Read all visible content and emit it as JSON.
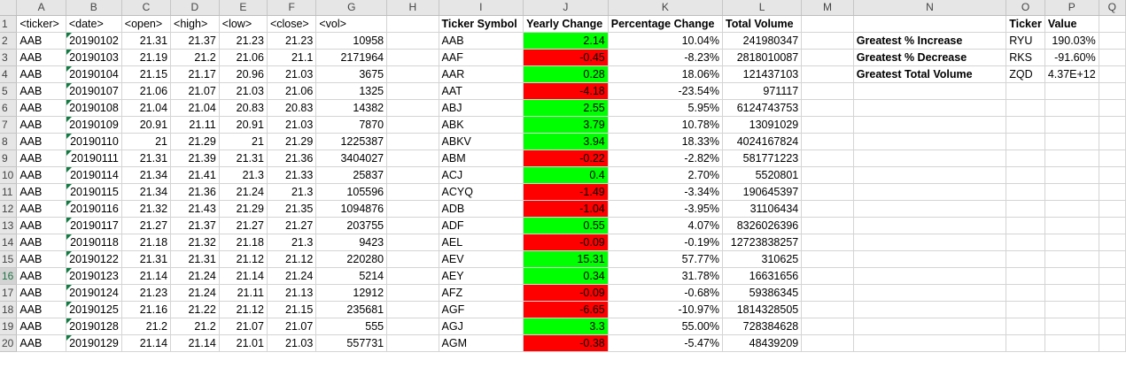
{
  "columns": [
    "A",
    "B",
    "C",
    "D",
    "E",
    "F",
    "G",
    "H",
    "I",
    "J",
    "K",
    "L",
    "M",
    "N",
    "O",
    "P",
    "Q"
  ],
  "headers": {
    "ticker": "<ticker>",
    "date": "<date>",
    "open": "<open>",
    "high": "<high>",
    "low": "<low>",
    "close": "<close>",
    "vol": "<vol>",
    "ticker_symbol": "Ticker Symbol",
    "yearly_change": "Yearly Change",
    "percentage_change": "Percentage Change",
    "total_volume": "Total Volume",
    "summary_ticker": "Ticker",
    "summary_value": "Value"
  },
  "rows": [
    {
      "ticker": "AAB",
      "date": "20190102",
      "open": "21.31",
      "high": "21.37",
      "low": "21.23",
      "close": "21.23",
      "vol": "10958"
    },
    {
      "ticker": "AAB",
      "date": "20190103",
      "open": "21.19",
      "high": "21.2",
      "low": "21.06",
      "close": "21.1",
      "vol": "2171964"
    },
    {
      "ticker": "AAB",
      "date": "20190104",
      "open": "21.15",
      "high": "21.17",
      "low": "20.96",
      "close": "21.03",
      "vol": "3675"
    },
    {
      "ticker": "AAB",
      "date": "20190107",
      "open": "21.06",
      "high": "21.07",
      "low": "21.03",
      "close": "21.06",
      "vol": "1325"
    },
    {
      "ticker": "AAB",
      "date": "20190108",
      "open": "21.04",
      "high": "21.04",
      "low": "20.83",
      "close": "20.83",
      "vol": "14382"
    },
    {
      "ticker": "AAB",
      "date": "20190109",
      "open": "20.91",
      "high": "21.11",
      "low": "20.91",
      "close": "21.03",
      "vol": "7870"
    },
    {
      "ticker": "AAB",
      "date": "20190110",
      "open": "21",
      "high": "21.29",
      "low": "21",
      "close": "21.29",
      "vol": "1225387"
    },
    {
      "ticker": "AAB",
      "date": "20190111",
      "open": "21.31",
      "high": "21.39",
      "low": "21.31",
      "close": "21.36",
      "vol": "3404027"
    },
    {
      "ticker": "AAB",
      "date": "20190114",
      "open": "21.34",
      "high": "21.41",
      "low": "21.3",
      "close": "21.33",
      "vol": "25837"
    },
    {
      "ticker": "AAB",
      "date": "20190115",
      "open": "21.34",
      "high": "21.36",
      "low": "21.24",
      "close": "21.3",
      "vol": "105596"
    },
    {
      "ticker": "AAB",
      "date": "20190116",
      "open": "21.32",
      "high": "21.43",
      "low": "21.29",
      "close": "21.35",
      "vol": "1094876"
    },
    {
      "ticker": "AAB",
      "date": "20190117",
      "open": "21.27",
      "high": "21.37",
      "low": "21.27",
      "close": "21.27",
      "vol": "203755"
    },
    {
      "ticker": "AAB",
      "date": "20190118",
      "open": "21.18",
      "high": "21.32",
      "low": "21.18",
      "close": "21.3",
      "vol": "9423"
    },
    {
      "ticker": "AAB",
      "date": "20190122",
      "open": "21.31",
      "high": "21.31",
      "low": "21.12",
      "close": "21.12",
      "vol": "220280"
    },
    {
      "ticker": "AAB",
      "date": "20190123",
      "open": "21.14",
      "high": "21.24",
      "low": "21.14",
      "close": "21.24",
      "vol": "5214"
    },
    {
      "ticker": "AAB",
      "date": "20190124",
      "open": "21.23",
      "high": "21.24",
      "low": "21.11",
      "close": "21.13",
      "vol": "12912"
    },
    {
      "ticker": "AAB",
      "date": "20190125",
      "open": "21.16",
      "high": "21.22",
      "low": "21.12",
      "close": "21.15",
      "vol": "235681"
    },
    {
      "ticker": "AAB",
      "date": "20190128",
      "open": "21.2",
      "high": "21.2",
      "low": "21.07",
      "close": "21.07",
      "vol": "555"
    },
    {
      "ticker": "AAB",
      "date": "20190129",
      "open": "21.14",
      "high": "21.14",
      "low": "21.01",
      "close": "21.03",
      "vol": "557731"
    }
  ],
  "summary": [
    {
      "symbol": "AAB",
      "yearly": "2.14",
      "pct": "10.04%",
      "total": "241980347",
      "color": "#00ff00"
    },
    {
      "symbol": "AAF",
      "yearly": "-0.45",
      "pct": "-8.23%",
      "total": "2818010087",
      "color": "#ff0000"
    },
    {
      "symbol": "AAR",
      "yearly": "0.28",
      "pct": "18.06%",
      "total": "121437103",
      "color": "#00ff00"
    },
    {
      "symbol": "AAT",
      "yearly": "-4.18",
      "pct": "-23.54%",
      "total": "971117",
      "color": "#ff0000"
    },
    {
      "symbol": "ABJ",
      "yearly": "2.55",
      "pct": "5.95%",
      "total": "6124743753",
      "color": "#00ff00"
    },
    {
      "symbol": "ABK",
      "yearly": "3.79",
      "pct": "10.78%",
      "total": "13091029",
      "color": "#00ff00"
    },
    {
      "symbol": "ABKV",
      "yearly": "3.94",
      "pct": "18.33%",
      "total": "4024167824",
      "color": "#00ff00"
    },
    {
      "symbol": "ABM",
      "yearly": "-0.22",
      "pct": "-2.82%",
      "total": "581771223",
      "color": "#ff0000"
    },
    {
      "symbol": "ACJ",
      "yearly": "0.4",
      "pct": "2.70%",
      "total": "5520801",
      "color": "#00ff00"
    },
    {
      "symbol": "ACYQ",
      "yearly": "-1.49",
      "pct": "-3.34%",
      "total": "190645397",
      "color": "#ff0000"
    },
    {
      "symbol": "ADB",
      "yearly": "-1.04",
      "pct": "-3.95%",
      "total": "31106434",
      "color": "#ff0000"
    },
    {
      "symbol": "ADF",
      "yearly": "0.55",
      "pct": "4.07%",
      "total": "8326026396",
      "color": "#00ff00"
    },
    {
      "symbol": "AEL",
      "yearly": "-0.09",
      "pct": "-0.19%",
      "total": "12723838257",
      "color": "#ff0000"
    },
    {
      "symbol": "AEV",
      "yearly": "15.31",
      "pct": "57.77%",
      "total": "310625",
      "color": "#00ff00"
    },
    {
      "symbol": "AEY",
      "yearly": "0.34",
      "pct": "31.78%",
      "total": "16631656",
      "color": "#00ff00"
    },
    {
      "symbol": "AFZ",
      "yearly": "-0.09",
      "pct": "-0.68%",
      "total": "59386345",
      "color": "#ff0000"
    },
    {
      "symbol": "AGF",
      "yearly": "-6.65",
      "pct": "-10.97%",
      "total": "1814328505",
      "color": "#ff0000"
    },
    {
      "symbol": "AGJ",
      "yearly": "3.3",
      "pct": "55.00%",
      "total": "728384628",
      "color": "#00ff00"
    },
    {
      "symbol": "AGM",
      "yearly": "-0.38",
      "pct": "-5.47%",
      "total": "48439209",
      "color": "#ff0000"
    }
  ],
  "greatest": [
    {
      "label": "Greatest % Increase",
      "ticker": "RYU",
      "value": "190.03%"
    },
    {
      "label": "Greatest % Decrease",
      "ticker": "RKS",
      "value": "-91.60%"
    },
    {
      "label": "Greatest Total Volume",
      "ticker": "ZQD",
      "value": "4.37E+12"
    }
  ],
  "selected_row": 16
}
